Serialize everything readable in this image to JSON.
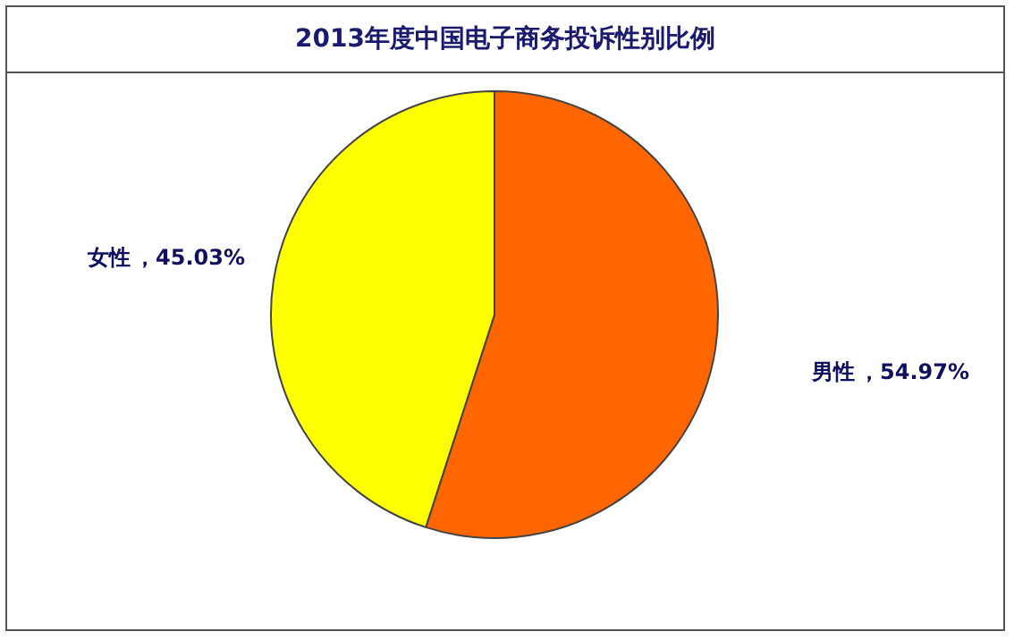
{
  "chart_data": {
    "type": "pie",
    "title": "2013年度中国电子商务投诉性别比例",
    "categories": [
      "男性",
      "女性"
    ],
    "values": [
      54.97,
      45.03
    ],
    "colors": [
      "#ff6600",
      "#ffff00"
    ],
    "value_labels": [
      "，54.97%",
      "，45.03%"
    ]
  }
}
